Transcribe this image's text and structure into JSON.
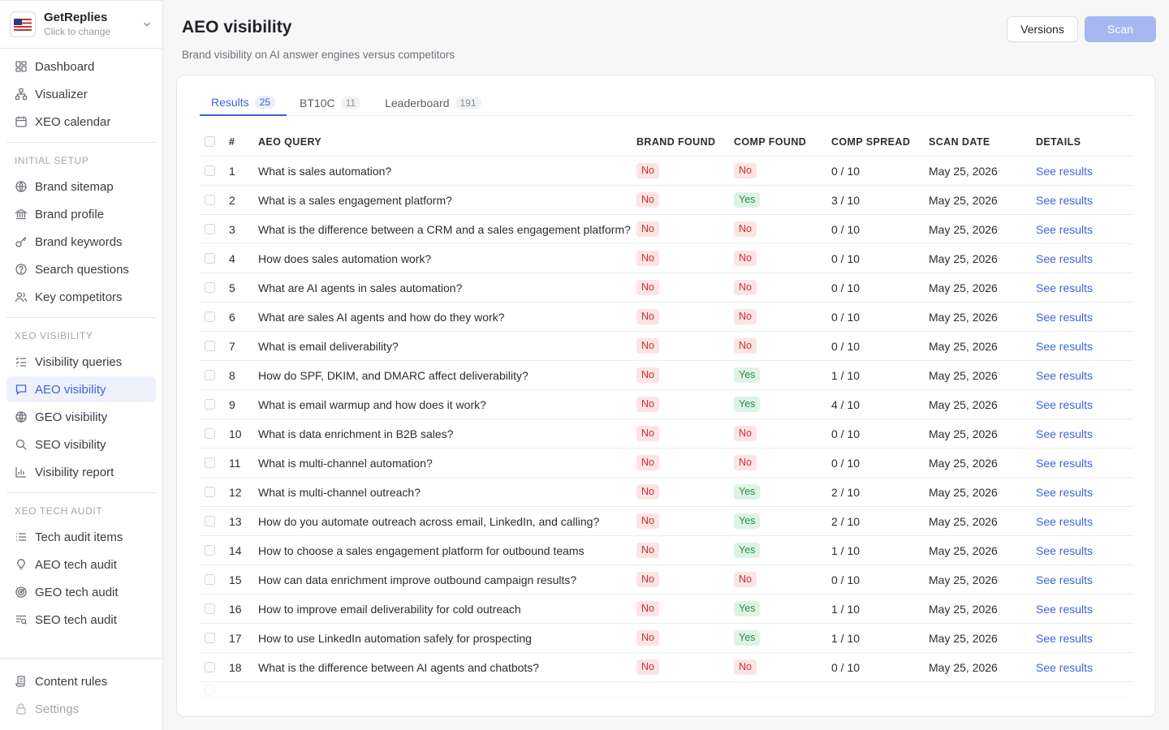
{
  "brand": {
    "name": "GetReplies",
    "sub": "Click to change"
  },
  "nav_main": [
    {
      "label": "Dashboard",
      "icon": "dashboard-icon"
    },
    {
      "label": "Visualizer",
      "icon": "visualizer-icon"
    },
    {
      "label": "XEO calendar",
      "icon": "calendar-icon"
    }
  ],
  "section_setup": "INITIAL SETUP",
  "nav_setup": [
    {
      "label": "Brand sitemap",
      "icon": "globe-icon"
    },
    {
      "label": "Brand profile",
      "icon": "bank-icon"
    },
    {
      "label": "Brand keywords",
      "icon": "key-icon"
    },
    {
      "label": "Search questions",
      "icon": "question-icon"
    },
    {
      "label": "Key competitors",
      "icon": "users-icon"
    }
  ],
  "section_visibility": "XEO VISIBILITY",
  "nav_visibility": [
    {
      "label": "Visibility queries",
      "icon": "list-check-icon",
      "active": false
    },
    {
      "label": "AEO visibility",
      "icon": "chat-icon",
      "active": true
    },
    {
      "label": "GEO visibility",
      "icon": "globe-icon",
      "active": false
    },
    {
      "label": "SEO visibility",
      "icon": "search-icon",
      "active": false
    },
    {
      "label": "Visibility report",
      "icon": "bar-chart-icon",
      "active": false
    }
  ],
  "section_audit": "XEO TECH AUDIT",
  "nav_audit": [
    {
      "label": "Tech audit items",
      "icon": "list-icon"
    },
    {
      "label": "AEO tech audit",
      "icon": "bulb-icon"
    },
    {
      "label": "GEO tech audit",
      "icon": "radar-icon"
    },
    {
      "label": "SEO tech audit",
      "icon": "list-search-icon"
    }
  ],
  "nav_bottom": [
    {
      "label": "Content rules",
      "icon": "scroll-icon",
      "disabled": false
    },
    {
      "label": "Settings",
      "icon": "lock-icon",
      "disabled": true
    }
  ],
  "page": {
    "title": "AEO visibility",
    "subtitle": "Brand visibility on AI answer engines versus competitors",
    "versions_label": "Versions",
    "scan_label": "Scan"
  },
  "tabs": [
    {
      "label": "Results",
      "count": "25",
      "active": true
    },
    {
      "label": "BT10C",
      "count": "11",
      "active": false
    },
    {
      "label": "Leaderboard",
      "count": "191",
      "active": false
    }
  ],
  "table": {
    "headers": {
      "num": "#",
      "query": "AEO QUERY",
      "brand": "BRAND FOUND",
      "comp": "COMP FOUND",
      "spread": "COMP SPREAD",
      "date": "SCAN DATE",
      "details": "DETAILS"
    },
    "rows": [
      {
        "n": "1",
        "q": "What is sales automation?",
        "bf": "No",
        "cf": "No",
        "cs": "0 / 10",
        "d": "May 25, 2026",
        "link": "See results"
      },
      {
        "n": "2",
        "q": "What is a sales engagement platform?",
        "bf": "No",
        "cf": "Yes",
        "cs": "3 / 10",
        "d": "May 25, 2026",
        "link": "See results"
      },
      {
        "n": "3",
        "q": "What is the difference between a CRM and a sales engagement platform?",
        "bf": "No",
        "cf": "No",
        "cs": "0 / 10",
        "d": "May 25, 2026",
        "link": "See results"
      },
      {
        "n": "4",
        "q": "How does sales automation work?",
        "bf": "No",
        "cf": "No",
        "cs": "0 / 10",
        "d": "May 25, 2026",
        "link": "See results"
      },
      {
        "n": "5",
        "q": "What are AI agents in sales automation?",
        "bf": "No",
        "cf": "No",
        "cs": "0 / 10",
        "d": "May 25, 2026",
        "link": "See results"
      },
      {
        "n": "6",
        "q": "What are sales AI agents and how do they work?",
        "bf": "No",
        "cf": "No",
        "cs": "0 / 10",
        "d": "May 25, 2026",
        "link": "See results"
      },
      {
        "n": "7",
        "q": "What is email deliverability?",
        "bf": "No",
        "cf": "No",
        "cs": "0 / 10",
        "d": "May 25, 2026",
        "link": "See results"
      },
      {
        "n": "8",
        "q": "How do SPF, DKIM, and DMARC affect deliverability?",
        "bf": "No",
        "cf": "Yes",
        "cs": "1 / 10",
        "d": "May 25, 2026",
        "link": "See results"
      },
      {
        "n": "9",
        "q": "What is email warmup and how does it work?",
        "bf": "No",
        "cf": "Yes",
        "cs": "4 / 10",
        "d": "May 25, 2026",
        "link": "See results"
      },
      {
        "n": "10",
        "q": "What is data enrichment in B2B sales?",
        "bf": "No",
        "cf": "No",
        "cs": "0 / 10",
        "d": "May 25, 2026",
        "link": "See results"
      },
      {
        "n": "11",
        "q": "What is multi-channel automation?",
        "bf": "No",
        "cf": "No",
        "cs": "0 / 10",
        "d": "May 25, 2026",
        "link": "See results"
      },
      {
        "n": "12",
        "q": "What is multi-channel outreach?",
        "bf": "No",
        "cf": "Yes",
        "cs": "2 / 10",
        "d": "May 25, 2026",
        "link": "See results"
      },
      {
        "n": "13",
        "q": "How do you automate outreach across email, LinkedIn, and calling?",
        "bf": "No",
        "cf": "Yes",
        "cs": "2 / 10",
        "d": "May 25, 2026",
        "link": "See results"
      },
      {
        "n": "14",
        "q": "How to choose a sales engagement platform for outbound teams",
        "bf": "No",
        "cf": "Yes",
        "cs": "1 / 10",
        "d": "May 25, 2026",
        "link": "See results"
      },
      {
        "n": "15",
        "q": "How can data enrichment improve outbound campaign results?",
        "bf": "No",
        "cf": "No",
        "cs": "0 / 10",
        "d": "May 25, 2026",
        "link": "See results"
      },
      {
        "n": "16",
        "q": "How to improve email deliverability for cold outreach",
        "bf": "No",
        "cf": "Yes",
        "cs": "1 / 10",
        "d": "May 25, 2026",
        "link": "See results"
      },
      {
        "n": "17",
        "q": "How to use LinkedIn automation safely for prospecting",
        "bf": "No",
        "cf": "Yes",
        "cs": "1 / 10",
        "d": "May 25, 2026",
        "link": "See results"
      },
      {
        "n": "18",
        "q": "What is the difference between AI agents and chatbots?",
        "bf": "No",
        "cf": "No",
        "cs": "0 / 10",
        "d": "May 25, 2026",
        "link": "See results"
      }
    ]
  },
  "colors": {
    "accent": "#3e64d8",
    "no_bg": "#fde4e4",
    "no_fg": "#c9302c",
    "yes_bg": "#ddf4e4",
    "yes_fg": "#2e8a4b",
    "scan_btn": "#a6b8ef"
  }
}
